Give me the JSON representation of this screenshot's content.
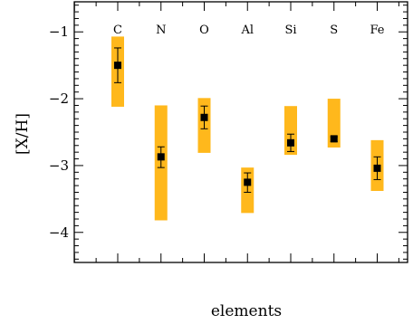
{
  "chart_data": {
    "type": "scatter",
    "title": "",
    "xlabel": "elements",
    "ylabel": "[X/H]",
    "ylim": [
      -4.45,
      -0.55
    ],
    "yticks": [
      -1,
      -2,
      -3,
      -4
    ],
    "yticks_labels": [
      "−1",
      "−2",
      "−3",
      "−4"
    ],
    "categories": [
      "C",
      "N",
      "O",
      "Al",
      "Si",
      "S",
      "Fe"
    ],
    "series": [
      {
        "values": [
          -1.5,
          -2.87,
          -2.28,
          -3.25,
          -2.66,
          -2.6,
          -3.04
        ],
        "err_low": [
          -1.76,
          -3.03,
          -2.45,
          -3.4,
          -2.79,
          -2.64,
          -3.21
        ],
        "err_high": [
          -1.24,
          -2.72,
          -2.11,
          -3.11,
          -2.53,
          -2.57,
          -2.87
        ]
      }
    ],
    "ranges": [
      [
        -1.07,
        -2.12
      ],
      [
        -2.1,
        -3.82
      ],
      [
        -1.99,
        -2.81
      ],
      [
        -3.03,
        -3.71
      ],
      [
        -2.11,
        -2.84
      ],
      [
        -2.0,
        -2.73
      ],
      [
        -2.62,
        -3.38
      ]
    ],
    "colors": {
      "range": "#ffb81c",
      "marker": "#000000"
    },
    "grid": false,
    "legend": "none"
  }
}
